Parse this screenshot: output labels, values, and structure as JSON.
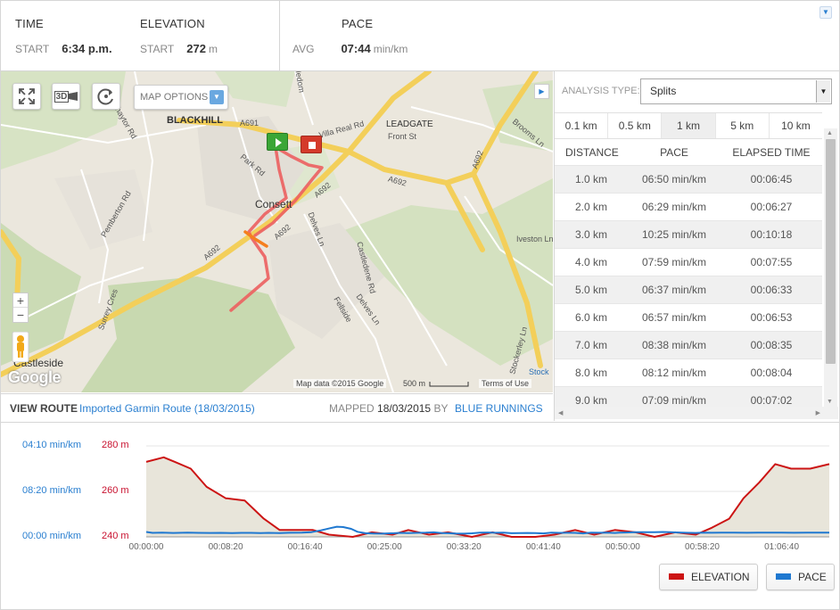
{
  "stats": {
    "time": {
      "title": "TIME",
      "start_label": "START",
      "start_value": "6:34 p.m."
    },
    "elevation": {
      "title": "ELEVATION",
      "start_label": "START",
      "start_value": "272",
      "unit": "m"
    },
    "pace": {
      "title": "PACE",
      "avg_label": "AVG",
      "avg_value": "07:44",
      "unit": "min/km"
    }
  },
  "map": {
    "options_label": "MAP OPTIONS",
    "btn_3d": "3D",
    "labels": {
      "blackhill": "BLACKHILL",
      "leadgate": "LEADGATE",
      "consett": "Consett",
      "castleside": "Castleside",
      "front_st": "Front St",
      "park_rd": "Park Rd",
      "chaytor_rd": "Chaytor Rd",
      "pemberton_rd": "Pemberton Rd",
      "delves_ln": "Delves Ln",
      "delves_ln2": "Delves Ln",
      "villa_real_rd": "Villa Real Rd",
      "brooms_ln": "Brooms Ln",
      "a691": "A691",
      "a692_1": "A692",
      "a692_2": "A692",
      "a692_3": "A692",
      "a692_4": "A692",
      "a692_5": "A692",
      "castledene_rd": "Castledene Rd",
      "fellside": "Fellside",
      "iveston_ln": "Iveston Ln",
      "stockerley_ln": "Stockerley Ln",
      "surrey_cres": "Surrey Cres",
      "medom": "Medom",
      "stock": "Stock"
    },
    "zoom_in": "+",
    "zoom_out": "−",
    "google": "Google",
    "attribution": "Map data ©2015 Google",
    "scale": "500 m",
    "terms": "Terms of Use"
  },
  "route": {
    "label": "VIEW ROUTE",
    "name": "Imported Garmin Route (18/03/2015)",
    "mapped_label": "MAPPED",
    "mapped_date": "18/03/2015",
    "by_label": "BY",
    "author": "BLUE RUNNINGS"
  },
  "analysis": {
    "type_label": "ANALYSIS TYPE:",
    "type_value": "Splits",
    "tabs": [
      "0.1 km",
      "0.5 km",
      "1 km",
      "5 km",
      "10 km"
    ],
    "active_tab": 2,
    "columns": [
      "DISTANCE",
      "PACE",
      "ELAPSED TIME"
    ],
    "rows": [
      [
        "1.0 km",
        "06:50 min/km",
        "00:06:45"
      ],
      [
        "2.0 km",
        "06:29 min/km",
        "00:06:27"
      ],
      [
        "3.0 km",
        "10:25 min/km",
        "00:10:18"
      ],
      [
        "4.0 km",
        "07:59 min/km",
        "00:07:55"
      ],
      [
        "5.0 km",
        "06:37 min/km",
        "00:06:33"
      ],
      [
        "6.0 km",
        "06:57 min/km",
        "00:06:53"
      ],
      [
        "7.0 km",
        "08:38 min/km",
        "00:08:35"
      ],
      [
        "8.0 km",
        "08:12 min/km",
        "00:08:04"
      ],
      [
        "9.0 km",
        "07:09 min/km",
        "00:07:02"
      ]
    ]
  },
  "chart_data": {
    "type": "line",
    "title": "",
    "x_ticks": [
      "00:00:00",
      "00:08:20",
      "00:16:40",
      "00:25:00",
      "00:33:20",
      "00:41:40",
      "00:50:00",
      "00:58:20",
      "01:06:40"
    ],
    "x_tick_seconds": [
      0,
      500,
      1000,
      1500,
      2000,
      2500,
      3000,
      3500,
      4000
    ],
    "pace_ticks": [
      "04:10 min/km",
      "08:20 min/km",
      "00:00 min/km"
    ],
    "elevation_ticks": [
      "280 m",
      "260 m",
      "240 m"
    ],
    "elevation_range": [
      240,
      280
    ],
    "pace_range_min": [
      0,
      250
    ],
    "series": [
      {
        "name": "ELEVATION",
        "color": "#cc1414",
        "x": [
          0,
          110,
          180,
          280,
          380,
          500,
          620,
          740,
          840,
          940,
          1050,
          1150,
          1300,
          1420,
          1550,
          1650,
          1780,
          1900,
          2050,
          2180,
          2300,
          2450,
          2570,
          2700,
          2820,
          2950,
          3080,
          3200,
          3330,
          3460,
          3560,
          3670,
          3760,
          3860,
          3960,
          4060,
          4180,
          4300
        ],
        "y": [
          273,
          275,
          273,
          270,
          262,
          257,
          256,
          248,
          243,
          243,
          243,
          241,
          240,
          242,
          241,
          243,
          241,
          242,
          240,
          242,
          240,
          240,
          241,
          243,
          241,
          243,
          242,
          240,
          242,
          241,
          244,
          248,
          257,
          264,
          272,
          270,
          270,
          272
        ]
      },
      {
        "name": "PACE",
        "color": "#1f78d0",
        "x": [
          0,
          40,
          100,
          170,
          260,
          330,
          400,
          470,
          540,
          600,
          660,
          720,
          770,
          840,
          900,
          980,
          1040,
          1100,
          1160,
          1200,
          1240,
          1290,
          1330,
          1380,
          1430,
          1480,
          1520,
          1560,
          1600,
          1650,
          1700,
          1760,
          1810,
          1860,
          1900,
          1950,
          2000,
          2050,
          2100,
          2150,
          2200,
          2250,
          2300,
          2350,
          2400,
          2450,
          2500,
          2550,
          2600,
          2650,
          2700,
          2750,
          2800,
          2850,
          2900,
          2950,
          2980,
          3020,
          3080,
          3150,
          3200,
          3250,
          3300,
          3350,
          3400,
          3460,
          3500,
          3560,
          3620,
          3700,
          3780,
          3850,
          3920,
          4000,
          4080,
          4160,
          4230,
          4300
        ],
        "y": [
          13.5,
          11,
          11.5,
          10.8,
          11.5,
          11,
          10.8,
          11,
          10.5,
          11,
          11,
          10.5,
          11,
          10.6,
          11.2,
          11.6,
          13,
          18,
          24,
          28,
          27,
          22,
          14,
          10,
          9,
          8.8,
          9.5,
          10,
          11,
          10.5,
          11,
          11.4,
          12.5,
          10.5,
          10,
          9,
          8.8,
          9.7,
          11.6,
          12,
          11.3,
          11.5,
          10,
          10.3,
          10.8,
          10.5,
          9.5,
          11.5,
          11,
          11.3,
          11,
          9.5,
          11.6,
          11.3,
          11.6,
          10.8,
          11.5,
          12,
          12.7,
          13.1,
          12.7,
          13.4,
          12.8,
          11.9,
          11.2,
          10.9,
          11.4,
          11.3,
          11.8,
          11.6,
          11.2,
          11.4,
          11.4,
          11.6,
          11.3,
          11.5,
          11.5,
          11.6
        ]
      }
    ]
  },
  "legend": {
    "elevation": "ELEVATION",
    "pace": "PACE"
  }
}
